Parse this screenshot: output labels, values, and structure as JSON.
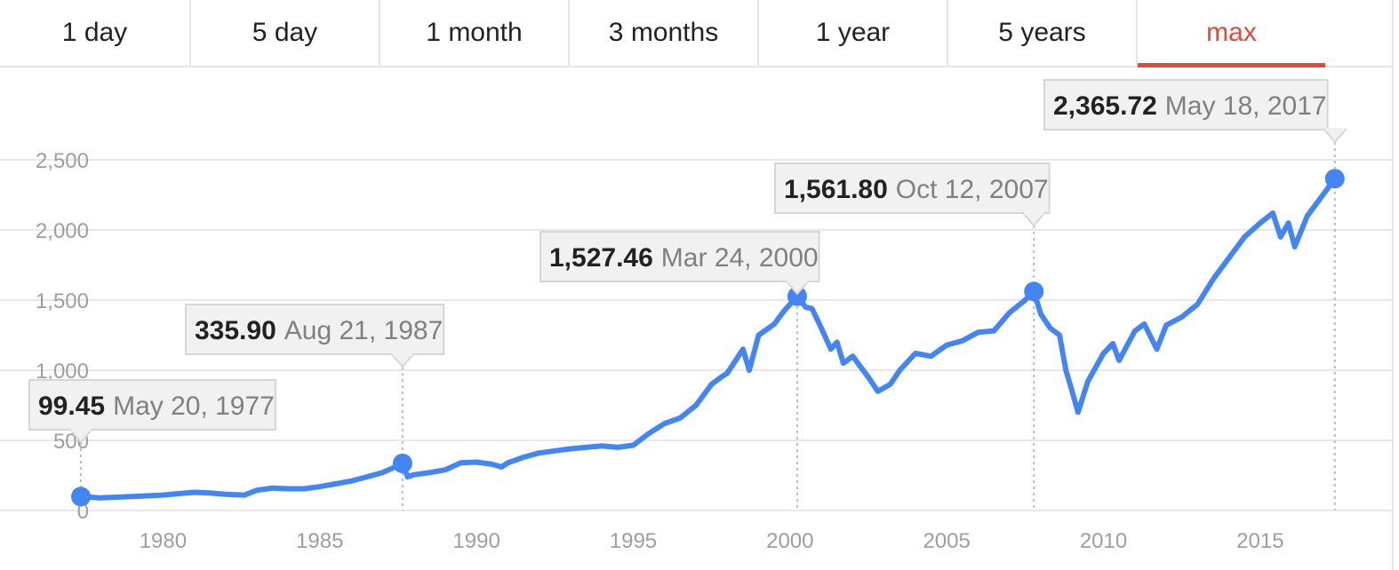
{
  "tabs": [
    {
      "label": "1 day",
      "active": false
    },
    {
      "label": "5 day",
      "active": false
    },
    {
      "label": "1 month",
      "active": false
    },
    {
      "label": "3 months",
      "active": false
    },
    {
      "label": "1 year",
      "active": false
    },
    {
      "label": "5 years",
      "active": false
    },
    {
      "label": "max",
      "active": true
    }
  ],
  "colors": {
    "line": "#4285f4",
    "active_tab": "#dd4b39",
    "grid": "#e8e8e8",
    "tick": "#9e9e9e"
  },
  "chart_data": {
    "type": "line",
    "xlim": [
      1974.8,
      2019.2
    ],
    "ylim": [
      0,
      2500
    ],
    "x_ticks": [
      1980,
      1985,
      1990,
      1995,
      2000,
      2005,
      2010,
      2015
    ],
    "x_tick_labels": [
      "1980",
      "1985",
      "1990",
      "1995",
      "2000",
      "2005",
      "2010",
      "2015"
    ],
    "y_ticks": [
      0,
      500,
      1000,
      1500,
      2000,
      2500
    ],
    "y_tick_labels": [
      "0",
      "500",
      "1,000",
      "1,500",
      "2,000",
      "2,500"
    ],
    "grid": true,
    "series": [
      {
        "x": [
          1977.38,
          1978.0,
          1978.5,
          1979.0,
          1980.0,
          1980.5,
          1981.0,
          1981.5,
          1982.0,
          1982.6,
          1983.0,
          1983.5,
          1984.0,
          1984.5,
          1985.0,
          1985.5,
          1986.0,
          1986.5,
          1987.0,
          1987.3,
          1987.64,
          1987.8,
          1988.0,
          1988.5,
          1989.0,
          1989.5,
          1990.0,
          1990.5,
          1990.8,
          1991.0,
          1991.5,
          1992.0,
          1993.0,
          1994.0,
          1994.5,
          1995.0,
          1995.5,
          1996.0,
          1996.5,
          1997.0,
          1997.5,
          1997.8,
          1998.0,
          1998.5,
          1998.7,
          1999.0,
          1999.5,
          1999.8,
          2000.23,
          2000.5,
          2000.7,
          2001.0,
          2001.3,
          2001.5,
          2001.7,
          2002.0,
          2002.5,
          2002.8,
          2003.2,
          2003.5,
          2004.0,
          2004.5,
          2005.0,
          2005.5,
          2006.0,
          2006.5,
          2007.0,
          2007.5,
          2007.78,
          2008.0,
          2008.3,
          2008.6,
          2008.8,
          2009.0,
          2009.19,
          2009.5,
          2010.0,
          2010.3,
          2010.5,
          2011.0,
          2011.3,
          2011.7,
          2012.0,
          2012.5,
          2013.0,
          2013.5,
          2014.0,
          2014.5,
          2015.0,
          2015.4,
          2015.65,
          2015.9,
          2016.1,
          2016.5,
          2017.0,
          2017.38
        ],
        "y": [
          99.45,
          90,
          95,
          100,
          110,
          120,
          130,
          125,
          115,
          110,
          145,
          160,
          155,
          155,
          170,
          190,
          210,
          240,
          270,
          300,
          335.9,
          240,
          255,
          270,
          290,
          340,
          345,
          330,
          310,
          340,
          380,
          410,
          440,
          460,
          450,
          465,
          550,
          620,
          660,
          750,
          900,
          950,
          980,
          1150,
          1000,
          1250,
          1330,
          1420,
          1527.46,
          1450,
          1440,
          1300,
          1150,
          1200,
          1050,
          1100,
          950,
          850,
          900,
          1000,
          1120,
          1100,
          1180,
          1210,
          1270,
          1280,
          1410,
          1500,
          1561.8,
          1400,
          1300,
          1250,
          1000,
          850,
          700,
          920,
          1120,
          1190,
          1070,
          1280,
          1330,
          1150,
          1320,
          1380,
          1470,
          1650,
          1800,
          1950,
          2050,
          2120,
          1950,
          2050,
          1880,
          2100,
          2250,
          2365.72
        ]
      }
    ],
    "highlight_points": [
      {
        "x": 1977.38,
        "y": 99.45,
        "value": "99.45",
        "date": "May 20, 1977"
      },
      {
        "x": 1987.64,
        "y": 335.9,
        "value": "335.90",
        "date": "Aug 21, 1987"
      },
      {
        "x": 2000.23,
        "y": 1527.46,
        "value": "1,527.46",
        "date": "Mar 24, 2000"
      },
      {
        "x": 2007.78,
        "y": 1561.8,
        "value": "1,561.80",
        "date": "Oct 12, 2007"
      },
      {
        "x": 2017.38,
        "y": 2365.72,
        "value": "2,365.72",
        "date": "May 18, 2017"
      }
    ]
  }
}
